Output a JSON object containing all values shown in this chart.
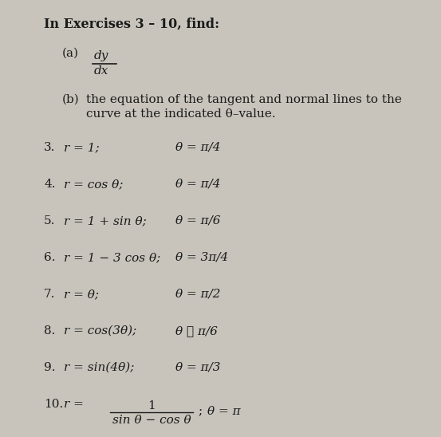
{
  "background_color": "#c8c4bc",
  "title_line": "In Exercises 3 – 10, find:",
  "part_a_label": "(a)",
  "part_a_num": "dy",
  "part_a_den": "dx",
  "part_b_label": "(b)",
  "part_b_text": "the equation of the tangent and normal lines to the",
  "part_b_text2": "curve at the indicated θ–value.",
  "exercises": [
    {
      "num": "3.",
      "expr": "r = 1;",
      "theta": "θ = π/4"
    },
    {
      "num": "4.",
      "expr": "r = cos θ;",
      "theta": "θ = π/4"
    },
    {
      "num": "5.",
      "expr": "r = 1 + sin θ;",
      "theta": "θ = π/6"
    },
    {
      "num": "6.",
      "expr": "r = 1 − 3 cos θ;",
      "theta": "θ = 3π/4"
    },
    {
      "num": "7.",
      "expr": "r = θ;",
      "theta": "θ = π/2"
    },
    {
      "num": "8.",
      "expr": "r = cos(3θ);",
      "theta": "θ ≅ π/6"
    },
    {
      "num": "9.",
      "expr": "r = sin(4θ);",
      "theta": "θ = π/3"
    },
    {
      "num": "10.",
      "expr_frac": true,
      "theta": "θ = π"
    }
  ],
  "fontsize_title": 11.5,
  "fontsize_body": 11,
  "fontsize_exercises": 11,
  "text_color": "#1a1a1a"
}
